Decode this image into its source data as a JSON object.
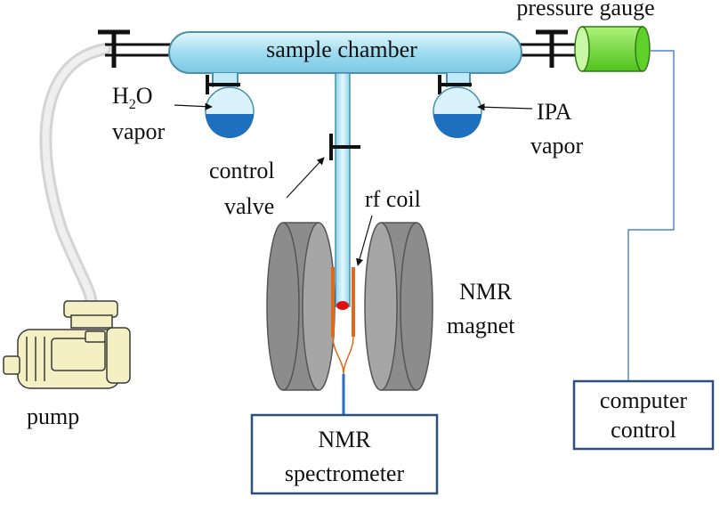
{
  "labels": {
    "sample_chamber": "sample chamber",
    "pressure_gauge": "pressure gauge",
    "h2o_main": "H",
    "h2o_sub": "2",
    "h2o_tail": "O",
    "vapor_left": "vapor",
    "ipa": "IPA",
    "vapor_right": "vapor",
    "control": "control",
    "valve": "valve",
    "rf_coil": "rf coil",
    "nmr": "NMR",
    "magnet": "magnet",
    "pump": "pump"
  },
  "boxes": {
    "computer_line1": "computer",
    "computer_line2": "control",
    "spectrometer_line1": "NMR",
    "spectrometer_line2": "spectrometer"
  },
  "colors": {
    "chamber_fill": "#bfe9f6",
    "chamber_stroke": "#4a90a8",
    "water": "#1f6fbf",
    "gauge": "#66dd33",
    "magnet": "#8c8c8c",
    "coil": "#e06a1a",
    "sample": "#e01010",
    "signal_line": "#2b6cc4",
    "box_stroke": "#2d4f7a",
    "pump": "#f4f0c4"
  }
}
